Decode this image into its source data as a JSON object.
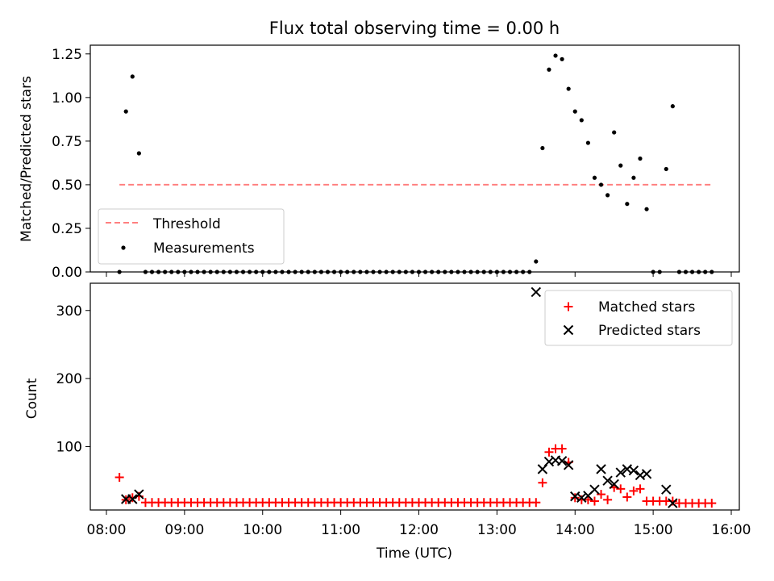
{
  "chart_data": [
    {
      "type": "scatter",
      "title": "Flux total observing time = 0.00 h",
      "xlabel": "",
      "ylabel": "Matched/Predicted stars",
      "xlim": [
        "08:00",
        "16:00"
      ],
      "ylim": [
        0,
        1.3
      ],
      "y_ticks": [
        "0.00",
        "0.25",
        "0.50",
        "0.75",
        "1.00",
        "1.25"
      ],
      "legend_position": "lower-left",
      "threshold": {
        "name": "Threshold",
        "value": 0.5,
        "x_range": [
          "08:10",
          "15:45"
        ],
        "color": "#ff7f7f"
      },
      "series": [
        {
          "name": "Measurements",
          "color": "#000000",
          "points": [
            [
              "08:10",
              0.0
            ],
            [
              "08:15",
              0.92
            ],
            [
              "08:20",
              1.12
            ],
            [
              "08:25",
              0.68
            ],
            [
              "08:30",
              0.0
            ],
            [
              "08:35",
              0.0
            ],
            [
              "08:40",
              0.0
            ],
            [
              "08:45",
              0.0
            ],
            [
              "08:50",
              0.0
            ],
            [
              "08:55",
              0.0
            ],
            [
              "09:00",
              0.0
            ],
            [
              "09:05",
              0.0
            ],
            [
              "09:10",
              0.0
            ],
            [
              "09:15",
              0.0
            ],
            [
              "09:20",
              0.0
            ],
            [
              "09:25",
              0.0
            ],
            [
              "09:30",
              0.0
            ],
            [
              "09:35",
              0.0
            ],
            [
              "09:40",
              0.0
            ],
            [
              "09:45",
              0.0
            ],
            [
              "09:50",
              0.0
            ],
            [
              "09:55",
              0.0
            ],
            [
              "10:00",
              0.0
            ],
            [
              "10:05",
              0.0
            ],
            [
              "10:10",
              0.0
            ],
            [
              "10:15",
              0.0
            ],
            [
              "10:20",
              0.0
            ],
            [
              "10:25",
              0.0
            ],
            [
              "10:30",
              0.0
            ],
            [
              "10:35",
              0.0
            ],
            [
              "10:40",
              0.0
            ],
            [
              "10:45",
              0.0
            ],
            [
              "10:50",
              0.0
            ],
            [
              "10:55",
              0.0
            ],
            [
              "11:00",
              0.0
            ],
            [
              "11:05",
              0.0
            ],
            [
              "11:10",
              0.0
            ],
            [
              "11:15",
              0.0
            ],
            [
              "11:20",
              0.0
            ],
            [
              "11:25",
              0.0
            ],
            [
              "11:30",
              0.0
            ],
            [
              "11:35",
              0.0
            ],
            [
              "11:40",
              0.0
            ],
            [
              "11:45",
              0.0
            ],
            [
              "11:50",
              0.0
            ],
            [
              "11:55",
              0.0
            ],
            [
              "12:00",
              0.0
            ],
            [
              "12:05",
              0.0
            ],
            [
              "12:10",
              0.0
            ],
            [
              "12:15",
              0.0
            ],
            [
              "12:20",
              0.0
            ],
            [
              "12:25",
              0.0
            ],
            [
              "12:30",
              0.0
            ],
            [
              "12:35",
              0.0
            ],
            [
              "12:40",
              0.0
            ],
            [
              "12:45",
              0.0
            ],
            [
              "12:50",
              0.0
            ],
            [
              "12:55",
              0.0
            ],
            [
              "13:00",
              0.0
            ],
            [
              "13:05",
              0.0
            ],
            [
              "13:10",
              0.0
            ],
            [
              "13:15",
              0.0
            ],
            [
              "13:20",
              0.0
            ],
            [
              "13:25",
              0.0
            ],
            [
              "13:30",
              0.06
            ],
            [
              "13:35",
              0.71
            ],
            [
              "13:40",
              1.16
            ],
            [
              "13:45",
              1.24
            ],
            [
              "13:50",
              1.22
            ],
            [
              "13:55",
              1.05
            ],
            [
              "14:00",
              0.92
            ],
            [
              "14:05",
              0.87
            ],
            [
              "14:10",
              0.74
            ],
            [
              "14:15",
              0.54
            ],
            [
              "14:20",
              0.5
            ],
            [
              "14:25",
              0.44
            ],
            [
              "14:30",
              0.8
            ],
            [
              "14:35",
              0.61
            ],
            [
              "14:40",
              0.39
            ],
            [
              "14:45",
              0.54
            ],
            [
              "14:50",
              0.65
            ],
            [
              "14:55",
              0.36
            ],
            [
              "15:00",
              0.0
            ],
            [
              "15:05",
              0.0
            ],
            [
              "15:10",
              0.59
            ],
            [
              "15:15",
              0.95
            ],
            [
              "15:20",
              0.0
            ],
            [
              "15:25",
              0.0
            ],
            [
              "15:30",
              0.0
            ],
            [
              "15:35",
              0.0
            ],
            [
              "15:40",
              0.0
            ],
            [
              "15:45",
              0.0
            ]
          ]
        }
      ]
    },
    {
      "type": "scatter",
      "title": "",
      "xlabel": "Time (UTC)",
      "ylabel": "Count",
      "xlim": [
        "08:00",
        "16:00"
      ],
      "x_ticks": [
        "08:00",
        "09:00",
        "10:00",
        "11:00",
        "12:00",
        "13:00",
        "14:00",
        "15:00",
        "16:00"
      ],
      "ylim": [
        0,
        330
      ],
      "y_ticks": [
        "100",
        "200",
        "300"
      ],
      "legend_position": "top-right",
      "series": [
        {
          "name": "Matched stars",
          "marker": "plus",
          "color": "#ff0000",
          "points": [
            [
              "08:10",
              55
            ],
            [
              "08:15",
              22
            ],
            [
              "08:20",
              25
            ],
            [
              "08:25",
              27
            ],
            [
              "08:30",
              18
            ],
            [
              "08:35",
              18
            ],
            [
              "08:40",
              18
            ],
            [
              "08:45",
              18
            ],
            [
              "08:50",
              18
            ],
            [
              "08:55",
              18
            ],
            [
              "09:00",
              18
            ],
            [
              "09:05",
              18
            ],
            [
              "09:10",
              18
            ],
            [
              "09:15",
              18
            ],
            [
              "09:20",
              18
            ],
            [
              "09:25",
              18
            ],
            [
              "09:30",
              18
            ],
            [
              "09:35",
              18
            ],
            [
              "09:40",
              18
            ],
            [
              "09:45",
              18
            ],
            [
              "09:50",
              18
            ],
            [
              "09:55",
              18
            ],
            [
              "10:00",
              18
            ],
            [
              "10:05",
              18
            ],
            [
              "10:10",
              18
            ],
            [
              "10:15",
              18
            ],
            [
              "10:20",
              18
            ],
            [
              "10:25",
              18
            ],
            [
              "10:30",
              18
            ],
            [
              "10:35",
              18
            ],
            [
              "10:40",
              18
            ],
            [
              "10:45",
              18
            ],
            [
              "10:50",
              18
            ],
            [
              "10:55",
              18
            ],
            [
              "11:00",
              18
            ],
            [
              "11:05",
              18
            ],
            [
              "11:10",
              18
            ],
            [
              "11:15",
              18
            ],
            [
              "11:20",
              18
            ],
            [
              "11:25",
              18
            ],
            [
              "11:30",
              18
            ],
            [
              "11:35",
              18
            ],
            [
              "11:40",
              18
            ],
            [
              "11:45",
              18
            ],
            [
              "11:50",
              18
            ],
            [
              "11:55",
              18
            ],
            [
              "12:00",
              18
            ],
            [
              "12:05",
              18
            ],
            [
              "12:10",
              18
            ],
            [
              "12:15",
              18
            ],
            [
              "12:20",
              18
            ],
            [
              "12:25",
              18
            ],
            [
              "12:30",
              18
            ],
            [
              "12:35",
              18
            ],
            [
              "12:40",
              18
            ],
            [
              "12:45",
              18
            ],
            [
              "12:50",
              18
            ],
            [
              "12:55",
              18
            ],
            [
              "13:00",
              18
            ],
            [
              "13:05",
              18
            ],
            [
              "13:10",
              18
            ],
            [
              "13:15",
              18
            ],
            [
              "13:20",
              18
            ],
            [
              "13:25",
              18
            ],
            [
              "13:30",
              18
            ],
            [
              "13:35",
              47
            ],
            [
              "13:40",
              92
            ],
            [
              "13:45",
              97
            ],
            [
              "13:50",
              97
            ],
            [
              "13:55",
              77
            ],
            [
              "14:00",
              25
            ],
            [
              "14:05",
              22
            ],
            [
              "14:10",
              22
            ],
            [
              "14:15",
              20
            ],
            [
              "14:20",
              30
            ],
            [
              "14:25",
              22
            ],
            [
              "14:30",
              40
            ],
            [
              "14:35",
              38
            ],
            [
              "14:40",
              26
            ],
            [
              "14:45",
              35
            ],
            [
              "14:50",
              38
            ],
            [
              "14:55",
              20
            ],
            [
              "15:00",
              20
            ],
            [
              "15:05",
              20
            ],
            [
              "15:10",
              20
            ],
            [
              "15:15",
              20
            ],
            [
              "15:20",
              17
            ],
            [
              "15:25",
              17
            ],
            [
              "15:30",
              17
            ],
            [
              "15:35",
              17
            ],
            [
              "15:40",
              17
            ],
            [
              "15:45",
              17
            ]
          ]
        },
        {
          "name": "Predicted stars",
          "marker": "x",
          "color": "#000000",
          "points": [
            [
              "08:15",
              23
            ],
            [
              "08:20",
              23
            ],
            [
              "08:25",
              30
            ],
            [
              "13:30",
              327
            ],
            [
              "13:35",
              67
            ],
            [
              "13:40",
              78
            ],
            [
              "13:45",
              80
            ],
            [
              "13:50",
              79
            ],
            [
              "13:55",
              73
            ],
            [
              "14:00",
              27
            ],
            [
              "14:05",
              25
            ],
            [
              "14:10",
              28
            ],
            [
              "14:15",
              37
            ],
            [
              "14:20",
              67
            ],
            [
              "14:25",
              50
            ],
            [
              "14:30",
              45
            ],
            [
              "14:35",
              62
            ],
            [
              "14:40",
              67
            ],
            [
              "14:45",
              65
            ],
            [
              "14:50",
              58
            ],
            [
              "14:55",
              60
            ],
            [
              "15:10",
              37
            ],
            [
              "15:15",
              17
            ]
          ]
        }
      ]
    }
  ]
}
